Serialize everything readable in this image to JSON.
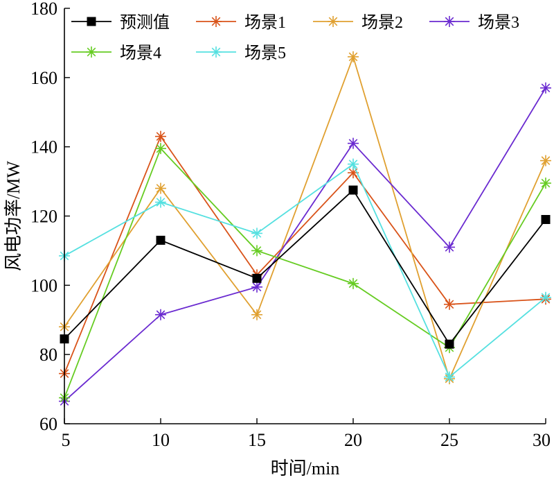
{
  "chart_data": {
    "type": "line",
    "title": "",
    "xlabel": "时间/min",
    "ylabel": "风电功率/MW",
    "x": [
      5,
      10,
      15,
      20,
      25,
      30
    ],
    "xlim": [
      5,
      30
    ],
    "ylim": [
      60,
      180
    ],
    "xticks": [
      "5",
      "10",
      "15",
      "20",
      "25",
      "30"
    ],
    "yticks": [
      "60",
      "80",
      "100",
      "120",
      "140",
      "160",
      "180"
    ],
    "grid": false,
    "legend_position": "top",
    "series": [
      {
        "name": "预测值",
        "color": "#000000",
        "marker": "square",
        "values": [
          84.5,
          113,
          102,
          127.5,
          83,
          119
        ]
      },
      {
        "name": "场景1",
        "color": "#d95319",
        "marker": "star",
        "values": [
          74.5,
          143,
          103,
          132.5,
          94.5,
          96
        ]
      },
      {
        "name": "场景2",
        "color": "#e0a030",
        "marker": "star",
        "values": [
          88,
          128,
          91.5,
          166,
          73,
          136
        ]
      },
      {
        "name": "场景3",
        "color": "#6a2ad0",
        "marker": "star",
        "values": [
          66.5,
          91.5,
          99.5,
          141,
          111,
          157
        ]
      },
      {
        "name": "场景4",
        "color": "#66cc22",
        "marker": "star",
        "values": [
          67.5,
          139.5,
          110,
          100.5,
          82,
          129.5
        ]
      },
      {
        "name": "场景5",
        "color": "#55e0e0",
        "marker": "star",
        "values": [
          108.5,
          124,
          115,
          135,
          73.5,
          96.5
        ]
      }
    ]
  }
}
